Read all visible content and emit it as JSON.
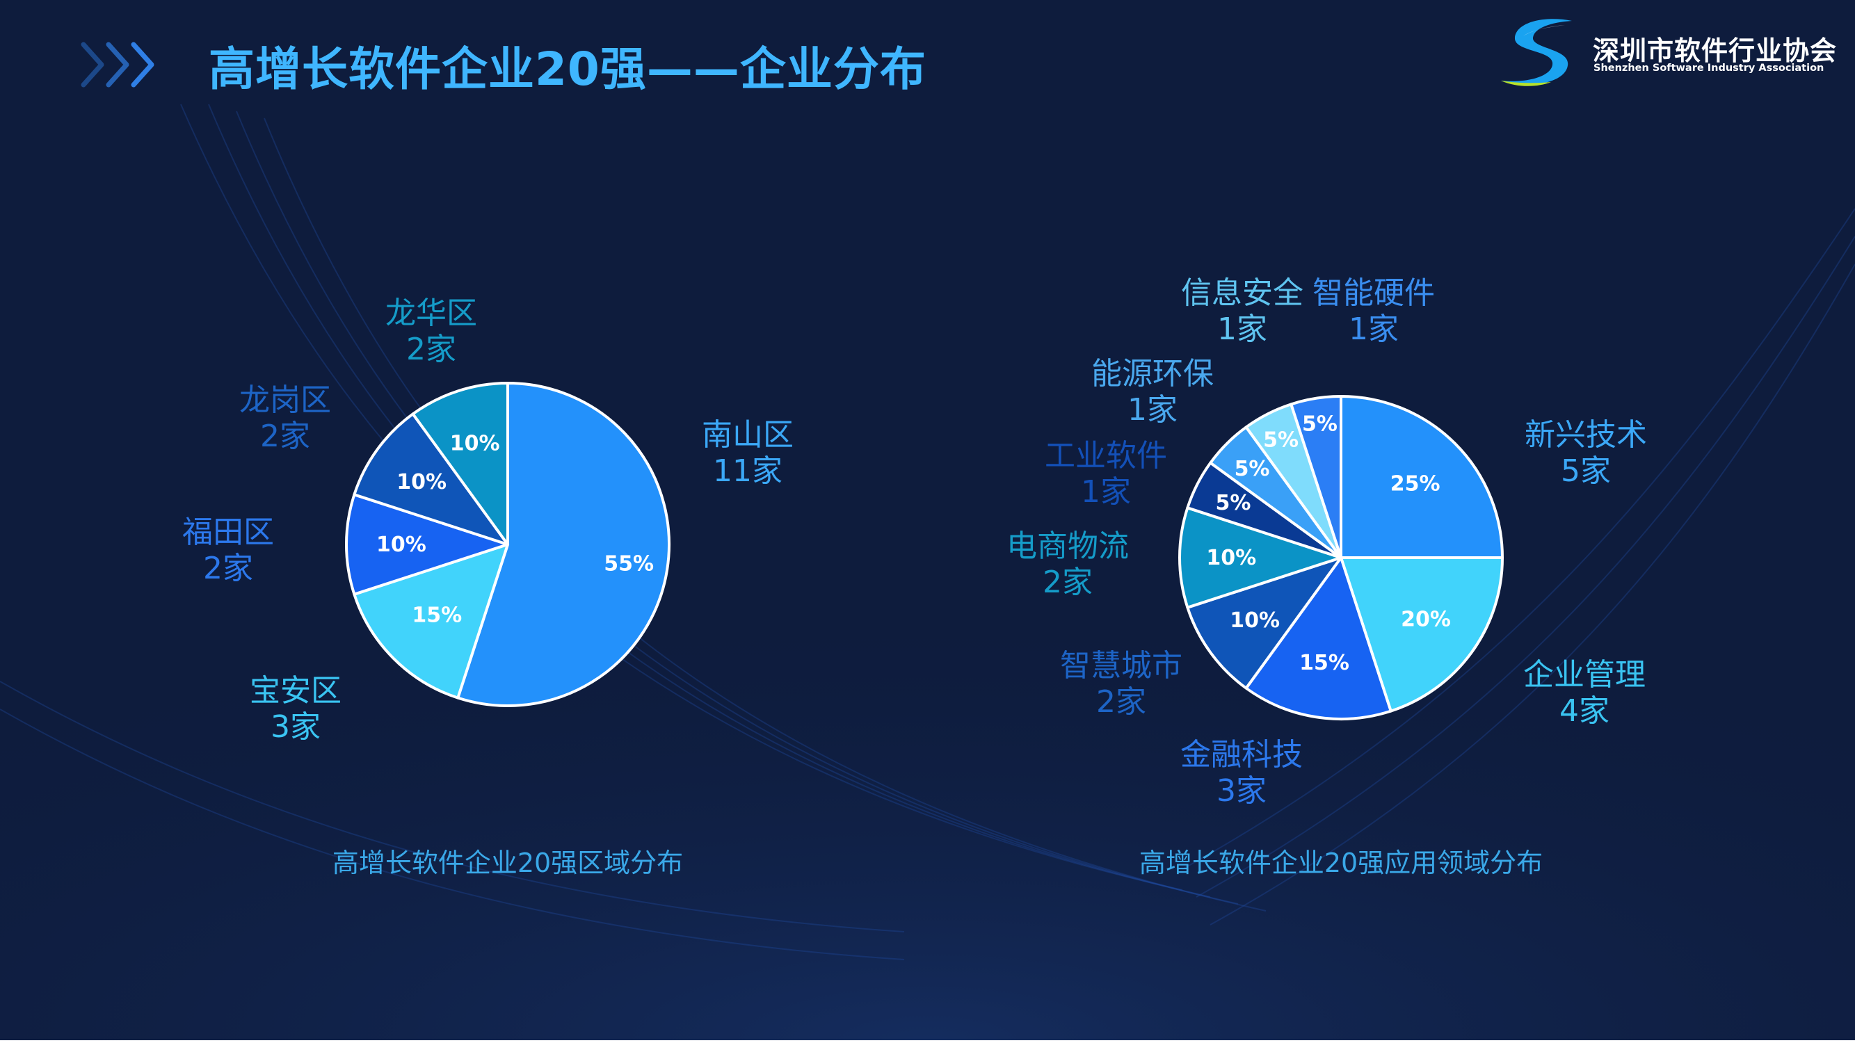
{
  "header": {
    "title": "高增长软件企业20强——企业分布",
    "logo_cn": "深圳市软件行业协会",
    "logo_en": "Shenzhen Software Industry Association"
  },
  "colors": {
    "background": "#0e1c3d",
    "title": "#3fb6ff",
    "slice_border": "#ffffff"
  },
  "chart_data": [
    {
      "type": "pie",
      "title": "",
      "caption": "高增长软件企业20强区域分布",
      "slices": [
        {
          "name": "南山区",
          "count_label": "11家",
          "value": 55,
          "pct_label": "55%",
          "color": "#2391fb",
          "label_color": "#3ba8f7"
        },
        {
          "name": "宝安区",
          "count_label": "3家",
          "value": 15,
          "pct_label": "15%",
          "color": "#41d3fb",
          "label_color": "#3ac4f2"
        },
        {
          "name": "福田区",
          "count_label": "2家",
          "value": 10,
          "pct_label": "10%",
          "color": "#1763f2",
          "label_color": "#2c78ec"
        },
        {
          "name": "龙岗区",
          "count_label": "2家",
          "value": 10,
          "pct_label": "10%",
          "color": "#0f55b8",
          "label_color": "#1d64c6"
        },
        {
          "name": "龙华区",
          "count_label": "2家",
          "value": 10,
          "pct_label": "10%",
          "color": "#0b93c6",
          "label_color": "#159cc9"
        }
      ]
    },
    {
      "type": "pie",
      "title": "",
      "caption": "高增长软件企业20强应用领域分布",
      "slices": [
        {
          "name": "新兴技术",
          "count_label": "5家",
          "value": 25,
          "pct_label": "25%",
          "color": "#2391fb",
          "label_color": "#3ba8f7"
        },
        {
          "name": "企业管理",
          "count_label": "4家",
          "value": 20,
          "pct_label": "20%",
          "color": "#41d3fb",
          "label_color": "#3ac4f2"
        },
        {
          "name": "金融科技",
          "count_label": "3家",
          "value": 15,
          "pct_label": "15%",
          "color": "#1763f2",
          "label_color": "#2c78ec"
        },
        {
          "name": "智慧城市",
          "count_label": "2家",
          "value": 10,
          "pct_label": "10%",
          "color": "#0f55b8",
          "label_color": "#1d64c6"
        },
        {
          "name": "电商物流",
          "count_label": "2家",
          "value": 10,
          "pct_label": "10%",
          "color": "#0b93c6",
          "label_color": "#159cc9"
        },
        {
          "name": "工业软件",
          "count_label": "1家",
          "value": 5,
          "pct_label": "5%",
          "color": "#0a3a94",
          "label_color": "#1350b8"
        },
        {
          "name": "能源环保",
          "count_label": "1家",
          "value": 5,
          "pct_label": "5%",
          "color": "#3aa0f7",
          "label_color": "#4aa8ee"
        },
        {
          "name": "信息安全",
          "count_label": "1家",
          "value": 5,
          "pct_label": "5%",
          "color": "#7fdcfc",
          "label_color": "#5fc4f0"
        },
        {
          "name": "智能硬件",
          "count_label": "1家",
          "value": 5,
          "pct_label": "5%",
          "color": "#2b7ef5",
          "label_color": "#3a8ef0"
        }
      ]
    }
  ]
}
